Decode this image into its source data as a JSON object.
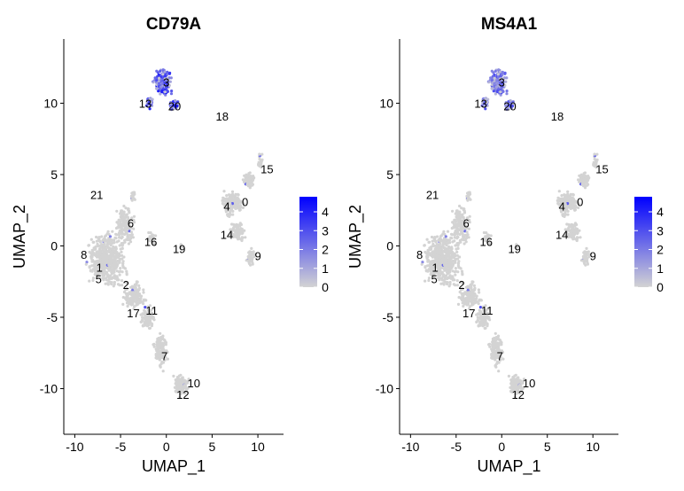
{
  "chart_data": [
    {
      "type": "scatter",
      "title": "CD79A",
      "xlabel": "UMAP_1",
      "ylabel": "UMAP_2",
      "xlim": [
        -11.2,
        12.8
      ],
      "ylim": [
        -13.2,
        14.5
      ],
      "x_ticks": [
        -10,
        -5,
        0,
        5,
        10
      ],
      "y_ticks": [
        -10,
        -5,
        0,
        5,
        10
      ],
      "grid": false,
      "color_scale": {
        "low": "#d3d3d3",
        "high": "#0000ff",
        "min": 0,
        "max": 4.8,
        "ticks": [
          0,
          1,
          2,
          3,
          4
        ]
      },
      "legend_position": "right",
      "cluster_labels": [
        {
          "label": "0",
          "x": 8.6,
          "y": 3.1
        },
        {
          "label": "1",
          "x": -7.3,
          "y": -1.5
        },
        {
          "label": "2",
          "x": -4.4,
          "y": -2.7
        },
        {
          "label": "3",
          "x": 0.0,
          "y": 11.5
        },
        {
          "label": "4",
          "x": 6.6,
          "y": 2.8
        },
        {
          "label": "5",
          "x": -7.4,
          "y": -2.3
        },
        {
          "label": "6",
          "x": -3.9,
          "y": 1.6
        },
        {
          "label": "7",
          "x": -0.2,
          "y": -7.7
        },
        {
          "label": "8",
          "x": -9.0,
          "y": -0.6
        },
        {
          "label": "9",
          "x": 10.0,
          "y": -0.7
        },
        {
          "label": "10",
          "x": 3.0,
          "y": -9.6
        },
        {
          "label": "11",
          "x": -1.6,
          "y": -4.5
        },
        {
          "label": "12",
          "x": 1.8,
          "y": -10.4
        },
        {
          "label": "13",
          "x": -2.3,
          "y": 10.0
        },
        {
          "label": "14",
          "x": 6.6,
          "y": 0.8
        },
        {
          "label": "15",
          "x": 11.0,
          "y": 5.4
        },
        {
          "label": "16",
          "x": -1.7,
          "y": 0.3
        },
        {
          "label": "17",
          "x": -3.6,
          "y": -4.7
        },
        {
          "label": "18",
          "x": 6.1,
          "y": 9.1
        },
        {
          "label": "19",
          "x": 1.4,
          "y": -0.2
        },
        {
          "label": "20",
          "x": 0.9,
          "y": 9.8
        },
        {
          "label": "21",
          "x": -7.6,
          "y": 3.6
        }
      ],
      "expression_hotspots": [
        {
          "cluster": "3",
          "level": 3.5
        },
        {
          "cluster": "13",
          "level": 3.0
        },
        {
          "cluster": "20",
          "level": 2.8
        }
      ]
    },
    {
      "type": "scatter",
      "title": "MS4A1",
      "xlabel": "UMAP_1",
      "ylabel": "UMAP_2",
      "xlim": [
        -11.2,
        12.8
      ],
      "ylim": [
        -13.2,
        14.5
      ],
      "x_ticks": [
        -10,
        -5,
        0,
        5,
        10
      ],
      "y_ticks": [
        -10,
        -5,
        0,
        5,
        10
      ],
      "grid": false,
      "color_scale": {
        "low": "#d3d3d3",
        "high": "#0000ff",
        "min": 0,
        "max": 4.8,
        "ticks": [
          0,
          1,
          2,
          3,
          4
        ]
      },
      "legend_position": "right",
      "cluster_labels": [
        {
          "label": "0",
          "x": 8.6,
          "y": 3.1
        },
        {
          "label": "1",
          "x": -7.3,
          "y": -1.5
        },
        {
          "label": "2",
          "x": -4.4,
          "y": -2.7
        },
        {
          "label": "3",
          "x": 0.0,
          "y": 11.5
        },
        {
          "label": "4",
          "x": 6.6,
          "y": 2.8
        },
        {
          "label": "5",
          "x": -7.4,
          "y": -2.3
        },
        {
          "label": "6",
          "x": -3.9,
          "y": 1.6
        },
        {
          "label": "7",
          "x": -0.2,
          "y": -7.7
        },
        {
          "label": "8",
          "x": -9.0,
          "y": -0.6
        },
        {
          "label": "9",
          "x": 10.0,
          "y": -0.7
        },
        {
          "label": "10",
          "x": 3.0,
          "y": -9.6
        },
        {
          "label": "11",
          "x": -1.6,
          "y": -4.5
        },
        {
          "label": "12",
          "x": 1.8,
          "y": -10.4
        },
        {
          "label": "13",
          "x": -2.3,
          "y": 10.0
        },
        {
          "label": "14",
          "x": 6.6,
          "y": 0.8
        },
        {
          "label": "15",
          "x": 11.0,
          "y": 5.4
        },
        {
          "label": "16",
          "x": -1.7,
          "y": 0.3
        },
        {
          "label": "17",
          "x": -3.6,
          "y": -4.7
        },
        {
          "label": "18",
          "x": 6.1,
          "y": 9.1
        },
        {
          "label": "19",
          "x": 1.4,
          "y": -0.2
        },
        {
          "label": "20",
          "x": 0.9,
          "y": 9.8
        },
        {
          "label": "21",
          "x": -7.6,
          "y": 3.6
        }
      ],
      "expression_hotspots": [
        {
          "cluster": "3",
          "level": 2.6
        },
        {
          "cluster": "13",
          "level": 2.2
        },
        {
          "cluster": "20",
          "level": 2.0
        }
      ]
    }
  ]
}
